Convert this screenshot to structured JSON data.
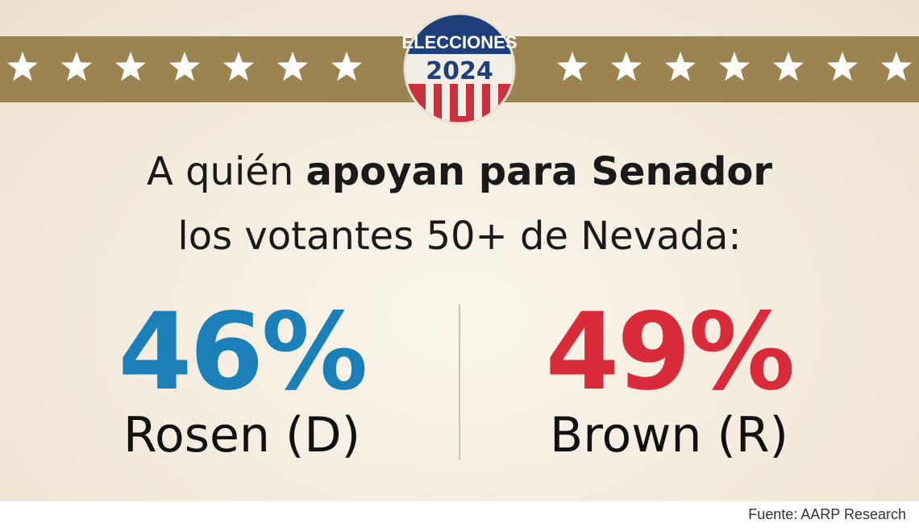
{
  "badge": {
    "line1": "ELECCIONES",
    "line2": "2024"
  },
  "title": {
    "line1_regular": "A quién",
    "line1_bold": "apoyan para Senador",
    "line2": "los votantes 50+ de Nevada:"
  },
  "candidates": [
    {
      "percent": "46%",
      "name": "Rosen (D)",
      "color": "#1b7fb8"
    },
    {
      "percent": "49%",
      "name": "Brown (R)",
      "color": "#d92b3a"
    }
  ],
  "source": "Fuente: AARP Research"
}
